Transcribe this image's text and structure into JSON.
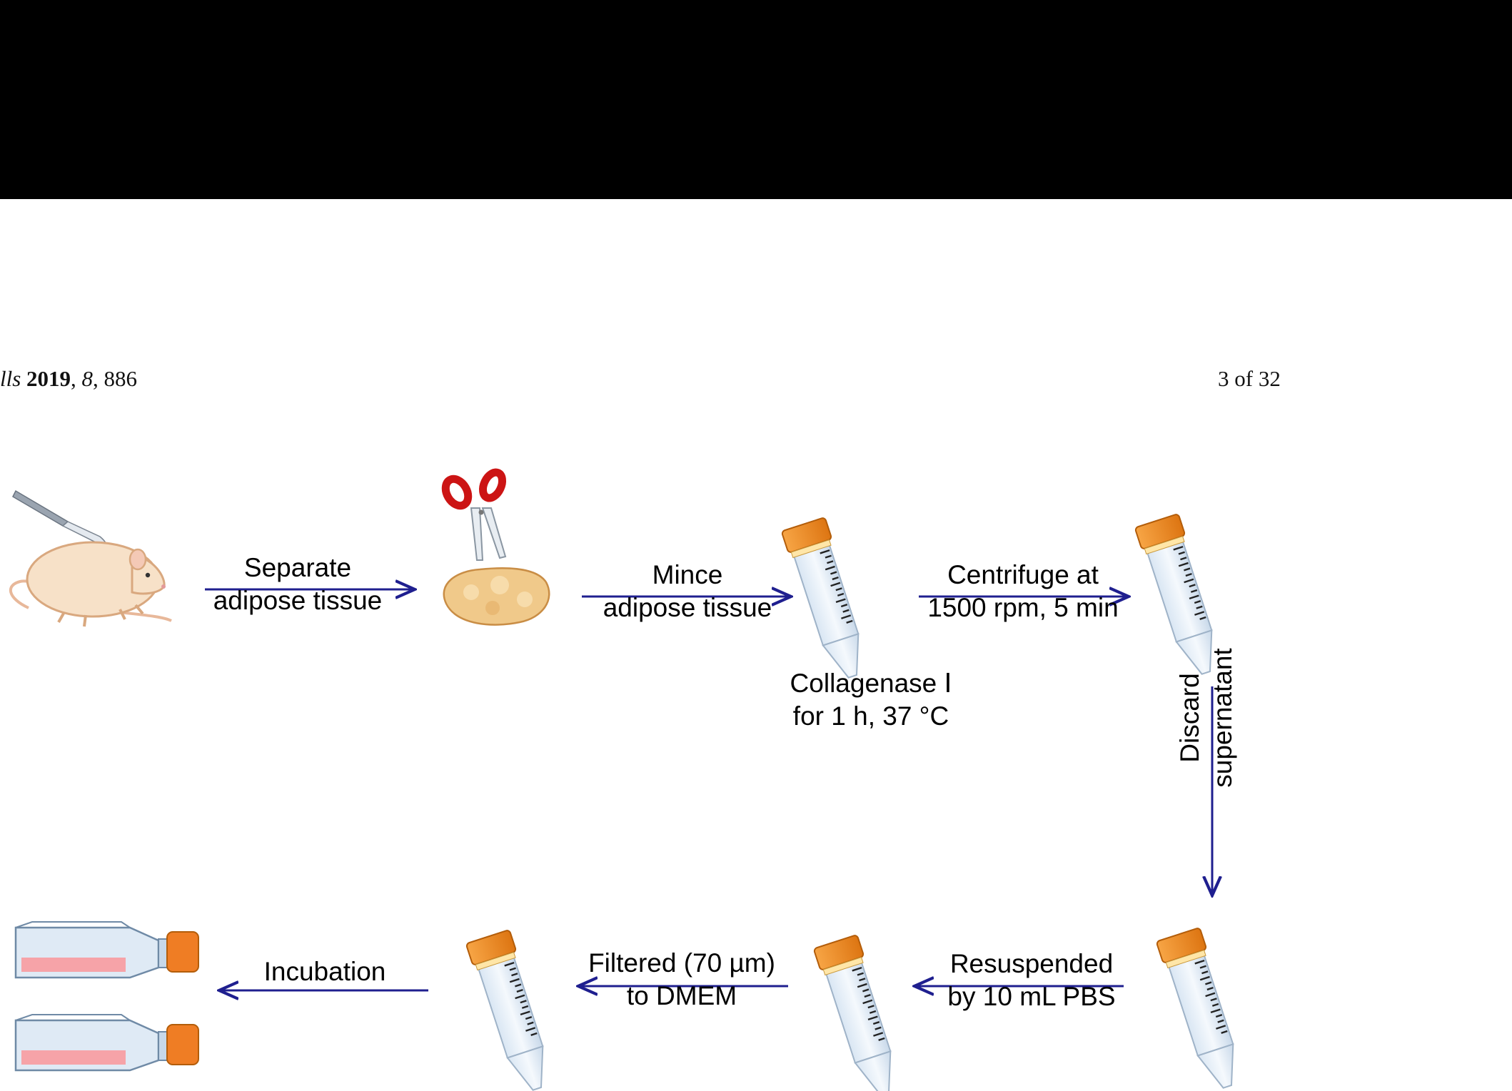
{
  "header": {
    "journal_fragment": "lls",
    "year": "2019",
    "volume": "8",
    "article": "886",
    "page": "3 of 32"
  },
  "steps": {
    "separate": [
      "Separate",
      "adipose tissue"
    ],
    "mince": [
      "Mince",
      "adipose tissue"
    ],
    "digest": [
      "Collagenase Ⅰ",
      "for 1 h, 37 °C"
    ],
    "centrifuge": [
      "Centrifuge at",
      "1500 rpm, 5 min"
    ],
    "discard": [
      "Discard",
      "supernatant"
    ],
    "resuspend": [
      "Resuspended",
      "by 10 mL PBS"
    ],
    "filter": [
      "Filtered (70 µm)",
      "to DMEM"
    ],
    "incubate": [
      "Incubation"
    ]
  },
  "colors": {
    "arrow": "#1f1f8f",
    "tube_cap": "#f08c1e",
    "liquid_yellow": "#d7ea1c",
    "liquid_blue": "#7cc8dc",
    "liquid_red": "#e0202a",
    "flask_medium": "#f6a3a8",
    "scissors_handle": "#cc1414",
    "rat_body": "#f7e1c8",
    "tissue": "#f0c98a"
  },
  "icons": [
    "scalpel-icon",
    "rat-icon",
    "scissors-icon",
    "adipose-tissue-icon",
    "centrifuge-tube-icon",
    "culture-flask-icon"
  ]
}
